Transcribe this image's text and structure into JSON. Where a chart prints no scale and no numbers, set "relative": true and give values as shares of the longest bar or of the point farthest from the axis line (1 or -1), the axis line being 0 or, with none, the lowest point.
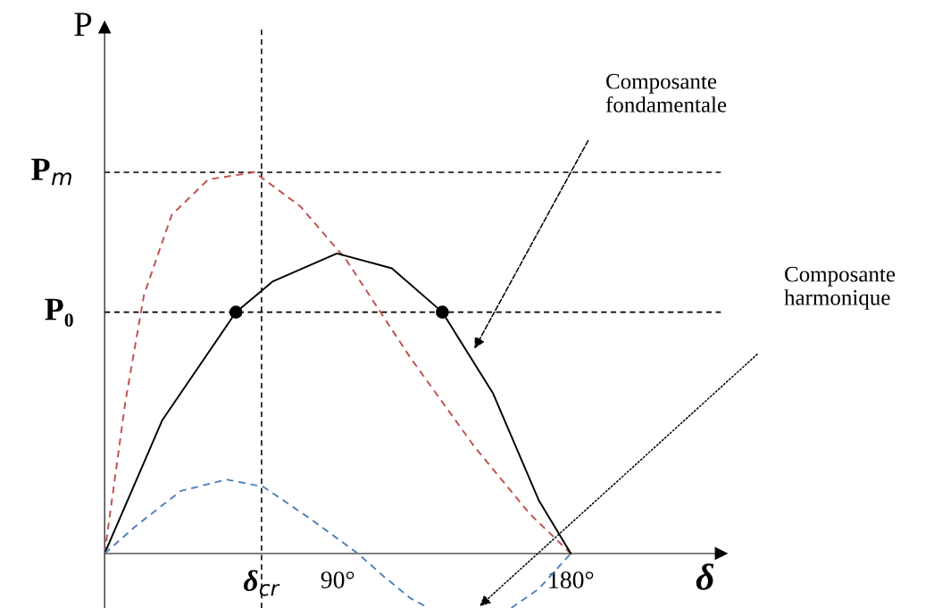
{
  "chart_data": {
    "type": "line",
    "relative": true,
    "xlabel": "δ",
    "ylabel": "P",
    "xlim": [
      0,
      238
    ],
    "xticks": [
      {
        "value": 90,
        "label": "90°"
      },
      {
        "value": 180,
        "label": "180°"
      }
    ],
    "grid": false,
    "series": [
      {
        "color": "#c0504d",
        "line_style": "dashed",
        "x": [
          0,
          8,
          15.2,
          25.9,
          40,
          57.8,
          75.5,
          93.2,
          118,
          142.8,
          164,
          180
        ],
        "values": [
          0,
          0.397,
          0.678,
          0.888,
          0.981,
          1,
          0.911,
          0.771,
          0.514,
          0.28,
          0.105,
          0
        ]
      },
      {
        "color": "#000000",
        "line_style": "solid",
        "x": [
          0,
          22.3,
          50.7,
          64.8,
          89.7,
          110.9,
          130.4,
          149.9,
          167.6,
          180
        ],
        "values": [
          0,
          0.35,
          0.633,
          0.713,
          0.787,
          0.748,
          0.633,
          0.421,
          0.14,
          0
        ]
      },
      {
        "color": "#4f81bd",
        "line_style": "dashed",
        "x": [
          0,
          11.7,
          29.4,
          47.1,
          61.3,
          79,
          97.8,
          107.4,
          118,
          125,
          140,
          157,
          167.6,
          180
        ],
        "values": [
          0,
          0.07,
          0.164,
          0.194,
          0.175,
          0.093,
          0,
          -0.058,
          -0.117,
          -0.143,
          null,
          -0.143,
          -0.093,
          0
        ]
      },
      {
        "type": "scatter",
        "color": "#000000",
        "marker": "circle",
        "x": [
          50.7,
          130.4
        ],
        "values": [
          0.633,
          0.633
        ]
      }
    ],
    "ref_lines": [
      {
        "axis": "y",
        "value": 1,
        "label": "P$_{m}$",
        "line_style": "dashed",
        "color": "#000000"
      },
      {
        "axis": "y",
        "value": 0.633,
        "label": "P₀",
        "line_style": "dashed",
        "color": "#000000"
      },
      {
        "axis": "x",
        "value": 60.6,
        "label": "δ$_{cr}$",
        "line_style": "dashed",
        "color": "#000000"
      }
    ],
    "annotations": [
      "Composante\nfondamentale",
      "Composante\nharmonique"
    ]
  }
}
